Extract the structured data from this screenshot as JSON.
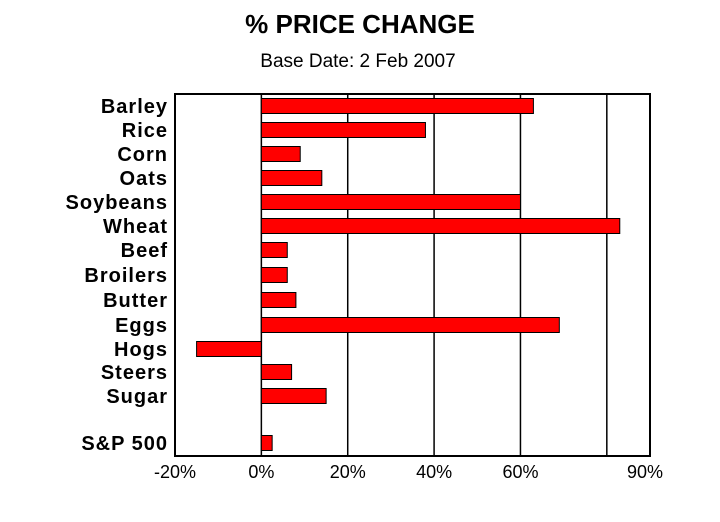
{
  "chart_data": {
    "type": "bar",
    "orientation": "horizontal",
    "title": "% PRICE CHANGE",
    "subtitle": "Base Date: 2 Feb 2007",
    "categories": [
      "Barley",
      "Rice",
      "Corn",
      "Oats",
      "Soybeans",
      "Wheat",
      "Beef",
      "Broilers",
      "Butter",
      "Eggs",
      "Hogs",
      "Steers",
      "Sugar",
      "S&P 500"
    ],
    "values": [
      63,
      38,
      9,
      14,
      60,
      83,
      6,
      6,
      8,
      69,
      -15,
      7,
      15,
      2.5
    ],
    "xlim": [
      -20,
      90
    ],
    "xticks": [
      -20,
      0,
      20,
      40,
      60,
      90
    ],
    "xtick_labels": [
      "-20%",
      "0%",
      "20%",
      "40%",
      "60%",
      "90%"
    ],
    "gridlines": [
      0,
      20,
      40,
      60,
      80
    ],
    "grid": true,
    "bar_color": "#ff0000",
    "bar_outline": "#000000"
  }
}
